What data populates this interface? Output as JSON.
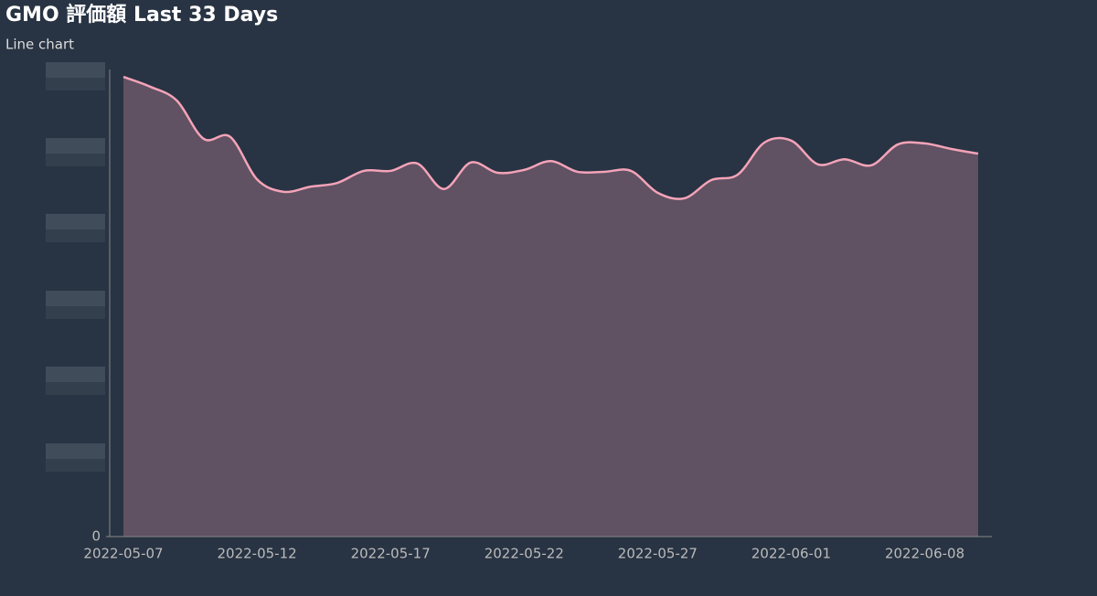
{
  "chart_data": {
    "type": "line",
    "title": "GMO 評価額 Last 33 Days",
    "subtitle": "Line chart",
    "categories": [
      "2022-05-07",
      null,
      null,
      null,
      null,
      "2022-05-12",
      null,
      null,
      null,
      null,
      "2022-05-17",
      null,
      null,
      null,
      null,
      "2022-05-22",
      null,
      null,
      null,
      null,
      "2022-05-27",
      null,
      null,
      null,
      null,
      "2022-06-01",
      null,
      null,
      null,
      null,
      "2022-06-08",
      null,
      null
    ],
    "series": [
      {
        "color": "#f4a3b8",
        "values": [
          98.8,
          96.7,
          93.7,
          85.5,
          85.9,
          76.8,
          74.1,
          75.2,
          76.0,
          78.6,
          78.6,
          80.2,
          74.7,
          80.4,
          78.2,
          78.8,
          80.7,
          78.4,
          78.4,
          78.6,
          73.9,
          72.7,
          76.6,
          77.8,
          84.7,
          85.1,
          80.0,
          81.1,
          79.8,
          84.3,
          84.5,
          83.3,
          82.3
        ]
      }
    ],
    "ylim": [
      0,
      100
    ],
    "yticks": [
      0
    ],
    "area": true
  }
}
